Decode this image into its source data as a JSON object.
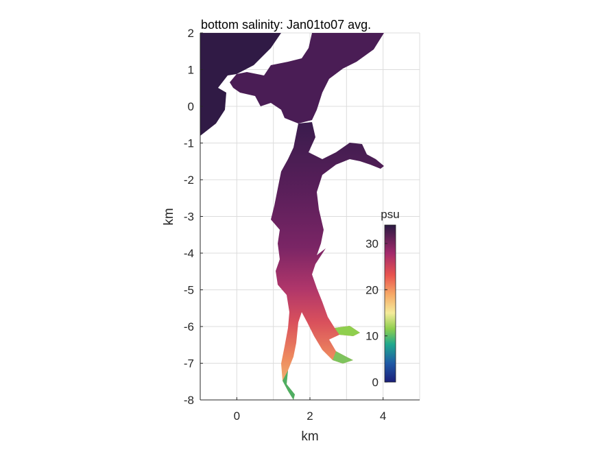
{
  "chart_data": {
    "type": "heatmap",
    "title": "bottom salinity: Jan01to07 avg.",
    "xlabel": "km",
    "ylabel": "km",
    "xlim": [
      -1,
      5
    ],
    "ylim": [
      -8,
      2
    ],
    "xticks": [
      0,
      2,
      4
    ],
    "yticks": [
      2,
      1,
      0,
      -1,
      -2,
      -3,
      -4,
      -5,
      -6,
      -7,
      -8
    ],
    "grid": true,
    "colorbar": {
      "label": "psu",
      "range": [
        0,
        34
      ],
      "ticks": [
        0,
        10,
        20,
        30
      ],
      "colormap": "thermal/spectral (purple high, yellow mid, blue low)"
    },
    "colors": {
      "high": "#2e1a47",
      "upper_mid": "#8c2c6e",
      "mid": "#e85a57",
      "mid_low": "#f6dea0",
      "low_mid": "#7ec35d",
      "low": "#1b2d8f"
    }
  }
}
